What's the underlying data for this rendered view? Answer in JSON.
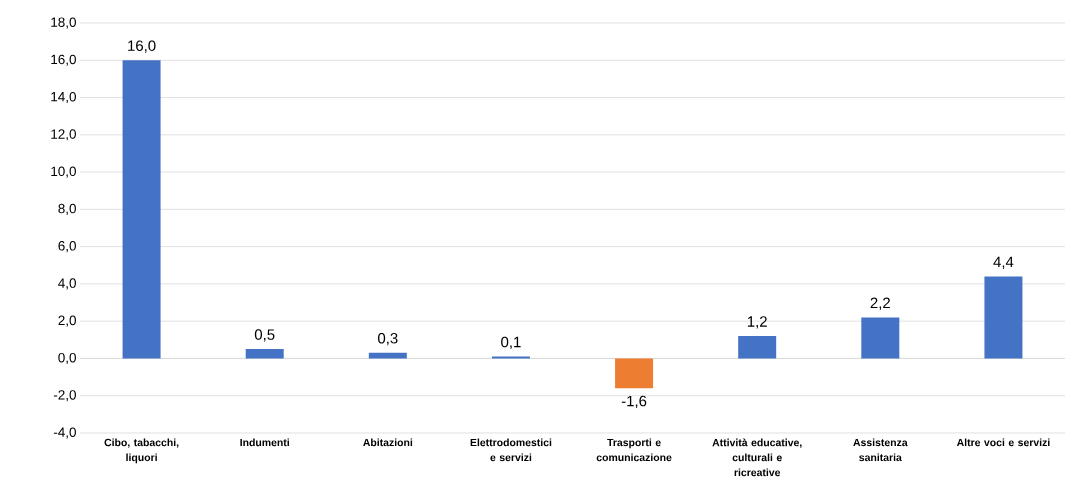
{
  "chart_data": {
    "type": "bar",
    "categories": [
      "Cibo, tabacchi, liquori",
      "Indumenti",
      "Abitazioni",
      "Elettrodomestici e servizi",
      "Trasporti e comunicazione",
      "Attività educative, culturali e ricreative",
      "Assistenza sanitaria",
      "Altre voci e servizi"
    ],
    "values": [
      16.0,
      0.5,
      0.3,
      0.1,
      -1.6,
      1.2,
      2.2,
      4.4
    ],
    "value_labels": [
      "16,0",
      "0,5",
      "0,3",
      "0,1",
      "-1,6",
      "1,2",
      "2,2",
      "4,4"
    ],
    "colors": [
      "#4472c4",
      "#4472c4",
      "#4472c4",
      "#4472c4",
      "#ed7d31",
      "#4472c4",
      "#4472c4",
      "#4472c4"
    ],
    "ylim": [
      -4,
      18
    ],
    "yticks": [
      {
        "value": -4,
        "label": "-4,0"
      },
      {
        "value": -2,
        "label": "-2,0"
      },
      {
        "value": 0,
        "label": "0,0"
      },
      {
        "value": 2,
        "label": "2,0"
      },
      {
        "value": 4,
        "label": "4,0"
      },
      {
        "value": 6,
        "label": "6,0"
      },
      {
        "value": 8,
        "label": "8,0"
      },
      {
        "value": 10,
        "label": "10,0"
      },
      {
        "value": 12,
        "label": "12,0"
      },
      {
        "value": 14,
        "label": "14,0"
      },
      {
        "value": 16,
        "label": "16,0"
      },
      {
        "value": 18,
        "label": "18,0"
      }
    ],
    "grid": "y"
  }
}
